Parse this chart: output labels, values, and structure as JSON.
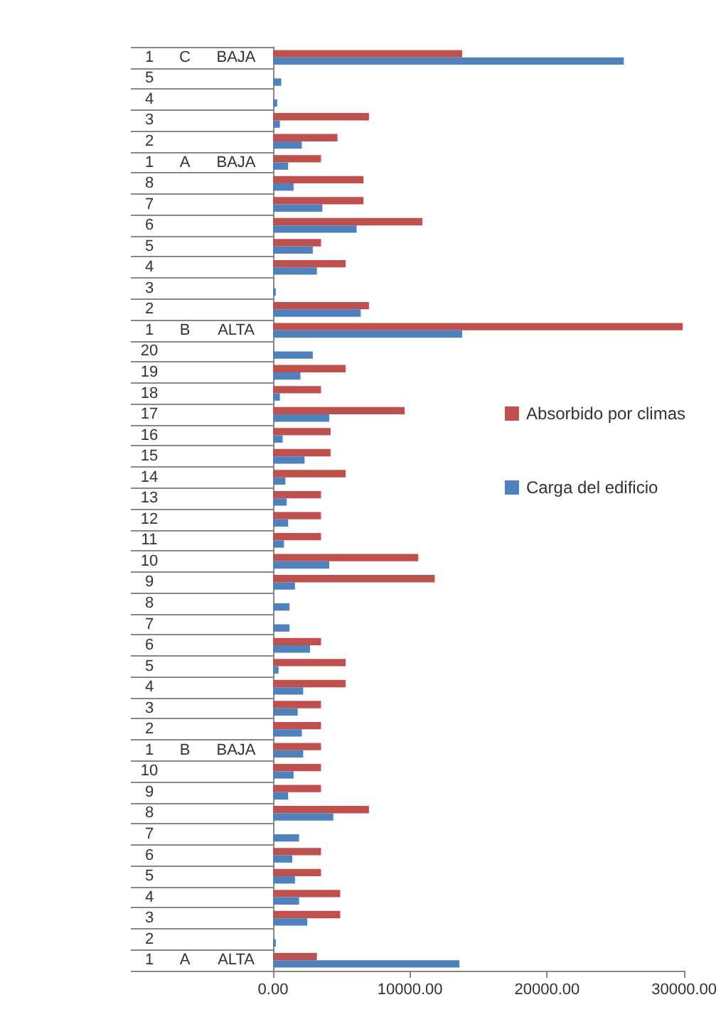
{
  "chart_data": {
    "type": "bar",
    "orientation": "horizontal",
    "categories": [
      "1 C BAJA",
      "5",
      "4",
      "3",
      "2",
      "1 A BAJA",
      "8",
      "7",
      "6",
      "5",
      "4",
      "3",
      "2",
      "1 B ALTA",
      "20",
      "19",
      "18",
      "17",
      "16",
      "15",
      "14",
      "13",
      "12",
      "11",
      "10",
      "9",
      "8",
      "7",
      "6",
      "5",
      "4",
      "3",
      "2",
      "1 B BAJA",
      "10",
      "9",
      "8",
      "7",
      "6",
      "5",
      "4",
      "3",
      "2",
      "1 A ALTA"
    ],
    "series": [
      {
        "name": "Absorbido por climas",
        "color": "#c0504d",
        "values": [
          13800,
          null,
          null,
          7000,
          4700,
          3500,
          6600,
          6600,
          10900,
          3500,
          5300,
          null,
          7000,
          29900,
          null,
          5300,
          3500,
          9600,
          4200,
          4200,
          5300,
          3500,
          3500,
          3500,
          10600,
          11800,
          null,
          null,
          3500,
          5300,
          5300,
          3500,
          3500,
          3500,
          3500,
          3500,
          7000,
          null,
          3500,
          3500,
          4900,
          4900,
          null,
          3200
        ]
      },
      {
        "name": "Carga del edificio",
        "color": "#4f81bd",
        "values": [
          25600,
          600,
          300,
          500,
          2100,
          1100,
          1500,
          3600,
          6100,
          2900,
          3200,
          200,
          6400,
          13800,
          2900,
          2000,
          500,
          4100,
          700,
          2300,
          900,
          1000,
          1100,
          800,
          4100,
          1600,
          1200,
          1200,
          2700,
          400,
          2200,
          1800,
          2100,
          2200,
          1500,
          1100,
          4400,
          1900,
          1400,
          1600,
          1900,
          2500,
          200,
          13600
        ]
      }
    ],
    "xlim": [
      0,
      30000
    ],
    "xticks": [
      {
        "value": 0,
        "label": "0.00"
      },
      {
        "value": 10000,
        "label": "10000.00"
      },
      {
        "value": 20000,
        "label": "20000.00"
      },
      {
        "value": 30000,
        "label": "30000.00"
      }
    ],
    "grid": false,
    "legend": "right"
  }
}
